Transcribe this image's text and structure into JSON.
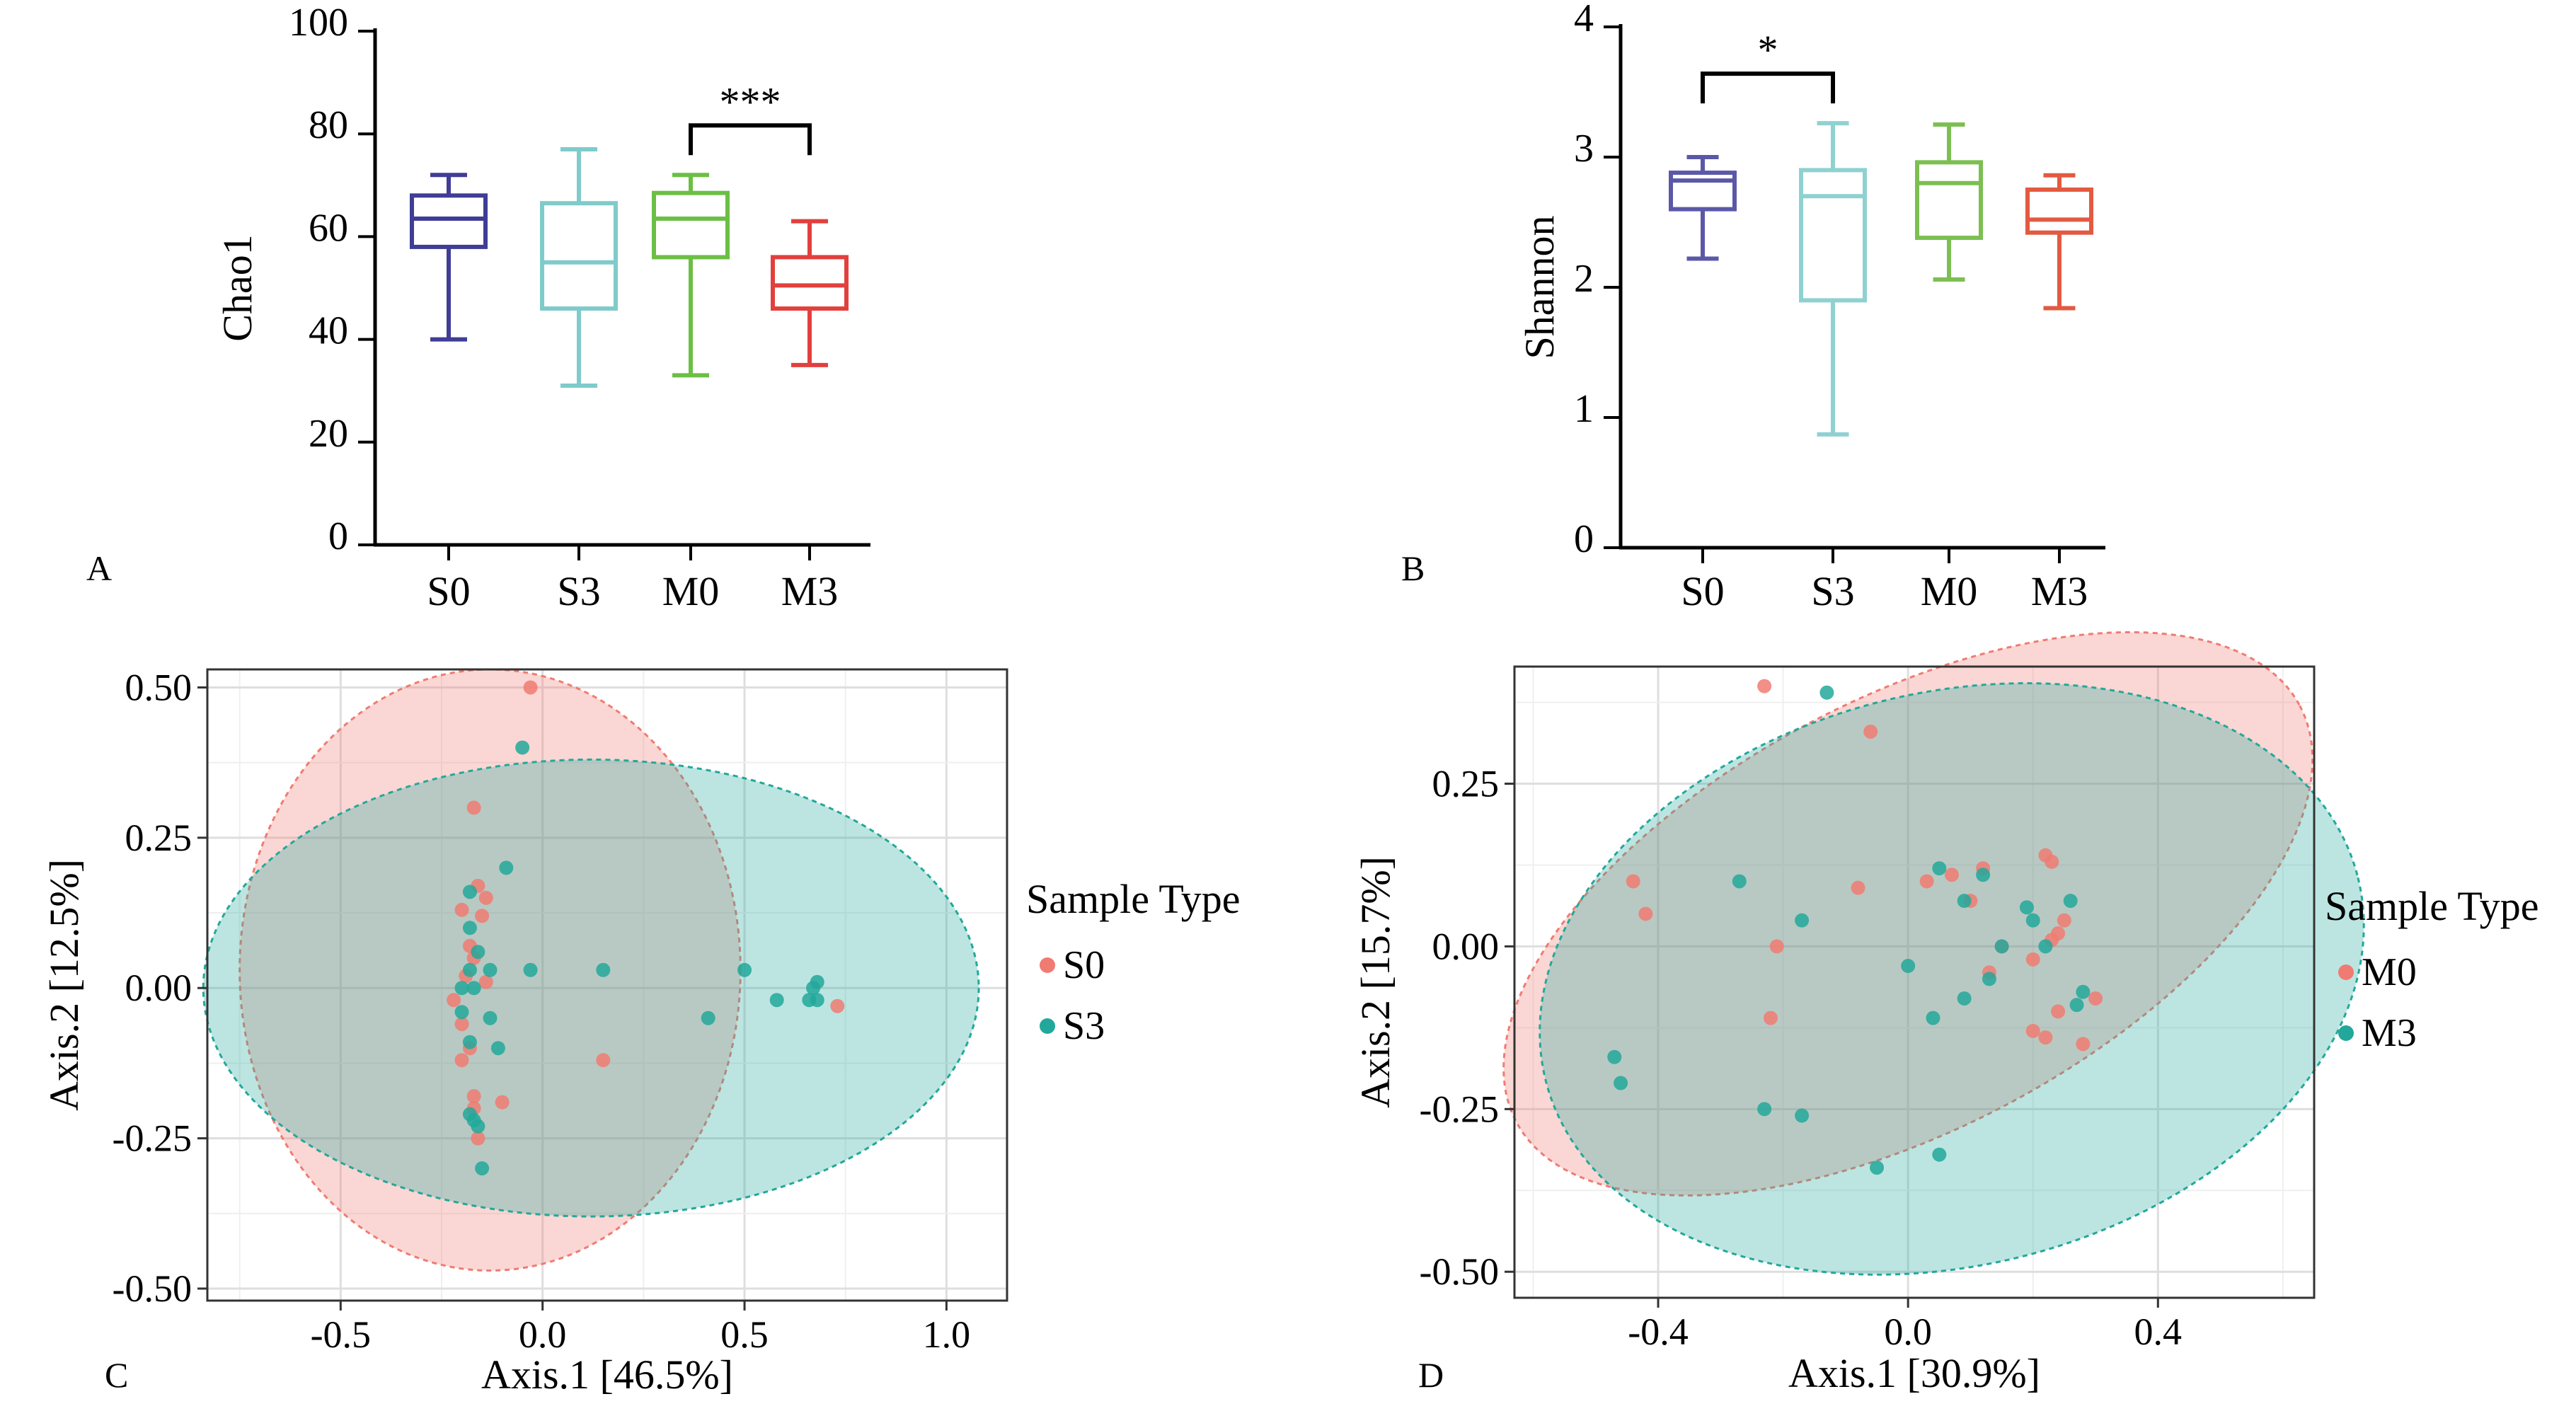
{
  "panels": {
    "A": {
      "label": "A"
    },
    "B": {
      "label": "B"
    },
    "C": {
      "label": "C"
    },
    "D": {
      "label": "D"
    }
  },
  "chart_data": [
    {
      "id": "A",
      "type": "box",
      "ylabel": "Chao1",
      "ylim": [
        0,
        100
      ],
      "yticks": [
        0,
        20,
        40,
        60,
        80,
        100
      ],
      "categories": [
        "S0",
        "S3",
        "M0",
        "M3"
      ],
      "colors": [
        "#3f3d96",
        "#7fcbcb",
        "#6cbf45",
        "#e2403d"
      ],
      "boxes": [
        {
          "min": 40,
          "q1": 58,
          "median": 63.5,
          "q3": 68,
          "max": 72
        },
        {
          "min": 31,
          "q1": 46,
          "median": 55,
          "q3": 66.5,
          "max": 77
        },
        {
          "min": 33,
          "q1": 56,
          "median": 63.5,
          "q3": 68.5,
          "max": 72
        },
        {
          "min": 35,
          "q1": 46,
          "median": 50.5,
          "q3": 56,
          "max": 63
        }
      ],
      "significance": [
        {
          "from": "M0",
          "to": "M3",
          "label": "***"
        }
      ]
    },
    {
      "id": "B",
      "type": "box",
      "ylabel": "Shannon",
      "ylim": [
        0,
        4
      ],
      "yticks": [
        0,
        1,
        2,
        3,
        4
      ],
      "categories": [
        "S0",
        "S3",
        "M0",
        "M3"
      ],
      "colors": [
        "#5b58a8",
        "#8fd1d1",
        "#7cbf52",
        "#e25a40"
      ],
      "boxes": [
        {
          "min": 2.22,
          "q1": 2.6,
          "median": 2.82,
          "q3": 2.88,
          "max": 3.0
        },
        {
          "min": 0.87,
          "q1": 1.9,
          "median": 2.7,
          "q3": 2.9,
          "max": 3.26
        },
        {
          "min": 2.06,
          "q1": 2.38,
          "median": 2.8,
          "q3": 2.96,
          "max": 3.25
        },
        {
          "min": 1.84,
          "q1": 2.42,
          "median": 2.52,
          "q3": 2.75,
          "max": 2.86
        }
      ],
      "significance": [
        {
          "from": "S0",
          "to": "S3",
          "label": "*"
        }
      ]
    },
    {
      "id": "C",
      "type": "scatter",
      "xlabel": "Axis.1 [46.5%]",
      "ylabel": "Axis.2 [12.5%]",
      "xlim": [
        -0.83,
        1.15
      ],
      "ylim": [
        -0.52,
        0.53
      ],
      "xticks": [
        -0.5,
        0.0,
        0.5,
        1.0
      ],
      "xticklabels": [
        "-0.5",
        "0.0",
        "0.5",
        "1.0"
      ],
      "yticks": [
        -0.5,
        -0.25,
        0.0,
        0.25,
        0.5
      ],
      "yticklabels": [
        "-0.50",
        "-0.25",
        "0.00",
        "0.25",
        "0.50"
      ],
      "grid": true,
      "legend_title": "Sample Type",
      "legend_position": "right",
      "series": [
        {
          "name": "S0",
          "color": "#f07b72",
          "ellipse": {
            "cx": -0.13,
            "cy": 0.03,
            "rx": 0.62,
            "ry": 0.5,
            "angle": 0
          },
          "points": [
            [
              -0.03,
              0.5
            ],
            [
              -0.17,
              0.3
            ],
            [
              -0.16,
              0.17
            ],
            [
              -0.14,
              0.15
            ],
            [
              -0.2,
              0.13
            ],
            [
              -0.15,
              0.12
            ],
            [
              -0.18,
              0.07
            ],
            [
              -0.17,
              0.05
            ],
            [
              -0.19,
              0.02
            ],
            [
              -0.14,
              0.01
            ],
            [
              -0.22,
              -0.02
            ],
            [
              -0.2,
              -0.06
            ],
            [
              -0.18,
              -0.1
            ],
            [
              -0.2,
              -0.12
            ],
            [
              -0.17,
              -0.18
            ],
            [
              -0.17,
              -0.2
            ],
            [
              -0.1,
              -0.19
            ],
            [
              -0.16,
              -0.25
            ],
            [
              0.15,
              -0.12
            ],
            [
              0.73,
              -0.03
            ]
          ]
        },
        {
          "name": "S3",
          "color": "#22a89a",
          "ellipse": {
            "cx": 0.12,
            "cy": 0.0,
            "rx": 0.96,
            "ry": 0.38,
            "angle": 0
          },
          "points": [
            [
              -0.05,
              0.4
            ],
            [
              -0.09,
              0.2
            ],
            [
              -0.18,
              0.16
            ],
            [
              -0.18,
              0.1
            ],
            [
              -0.16,
              0.06
            ],
            [
              -0.18,
              0.03
            ],
            [
              -0.13,
              0.03
            ],
            [
              -0.03,
              0.03
            ],
            [
              -0.2,
              0.0
            ],
            [
              -0.17,
              0.0
            ],
            [
              -0.13,
              -0.05
            ],
            [
              -0.2,
              -0.04
            ],
            [
              -0.18,
              -0.09
            ],
            [
              -0.11,
              -0.1
            ],
            [
              -0.18,
              -0.21
            ],
            [
              -0.16,
              -0.23
            ],
            [
              -0.17,
              -0.22
            ],
            [
              -0.15,
              -0.3
            ],
            [
              0.15,
              0.03
            ],
            [
              0.41,
              -0.05
            ],
            [
              0.5,
              0.03
            ],
            [
              0.58,
              -0.02
            ],
            [
              0.66,
              -0.02
            ],
            [
              0.68,
              -0.02
            ],
            [
              0.68,
              0.01
            ],
            [
              0.67,
              0.0
            ]
          ]
        }
      ]
    },
    {
      "id": "D",
      "type": "scatter",
      "xlabel": "Axis.1 [30.9%]",
      "ylabel": "Axis.2 [15.7%]",
      "xlim": [
        -0.63,
        0.65
      ],
      "ylim": [
        -0.54,
        0.43
      ],
      "xticks": [
        -0.4,
        0.0,
        0.4
      ],
      "xticklabels": [
        "-0.4",
        "0.0",
        "0.4"
      ],
      "yticks": [
        -0.5,
        -0.25,
        0.0,
        0.25
      ],
      "yticklabels": [
        "-0.50",
        "-0.25",
        "0.00",
        "0.25"
      ],
      "grid": true,
      "legend_title": "Sample Type",
      "legend_position": "right",
      "series": [
        {
          "name": "M0",
          "color": "#f07b72",
          "ellipse": {
            "cx": 0.0,
            "cy": 0.05,
            "rx": 0.71,
            "ry": 0.33,
            "angle": -28
          },
          "points": [
            [
              -0.23,
              0.4
            ],
            [
              -0.06,
              0.33
            ],
            [
              -0.44,
              0.1
            ],
            [
              -0.42,
              0.05
            ],
            [
              -0.21,
              0.0
            ],
            [
              -0.08,
              0.09
            ],
            [
              0.03,
              0.1
            ],
            [
              0.1,
              0.07
            ],
            [
              0.07,
              0.11
            ],
            [
              0.12,
              0.12
            ],
            [
              0.22,
              0.14
            ],
            [
              0.23,
              0.13
            ],
            [
              0.25,
              0.04
            ],
            [
              0.24,
              0.02
            ],
            [
              0.23,
              0.01
            ],
            [
              0.15,
              0.0
            ],
            [
              0.2,
              -0.02
            ],
            [
              0.13,
              -0.04
            ],
            [
              0.3,
              -0.08
            ],
            [
              0.24,
              -0.1
            ],
            [
              0.2,
              -0.13
            ],
            [
              0.22,
              -0.14
            ],
            [
              0.28,
              -0.15
            ],
            [
              -0.22,
              -0.11
            ]
          ]
        },
        {
          "name": "M3",
          "color": "#22a89a",
          "ellipse": {
            "cx": 0.07,
            "cy": -0.05,
            "rx": 0.67,
            "ry": 0.44,
            "angle": -14
          },
          "points": [
            [
              -0.13,
              0.39
            ],
            [
              -0.27,
              0.1
            ],
            [
              -0.17,
              0.04
            ],
            [
              0.05,
              0.12
            ],
            [
              0.09,
              0.07
            ],
            [
              0.12,
              0.11
            ],
            [
              0.19,
              0.06
            ],
            [
              0.26,
              0.07
            ],
            [
              0.2,
              0.04
            ],
            [
              0.15,
              0.0
            ],
            [
              0.22,
              0.0
            ],
            [
              0.0,
              -0.03
            ],
            [
              0.13,
              -0.05
            ],
            [
              0.09,
              -0.08
            ],
            [
              0.04,
              -0.11
            ],
            [
              0.28,
              -0.07
            ],
            [
              0.27,
              -0.09
            ],
            [
              -0.47,
              -0.17
            ],
            [
              -0.46,
              -0.21
            ],
            [
              -0.23,
              -0.25
            ],
            [
              -0.17,
              -0.26
            ],
            [
              -0.05,
              -0.34
            ],
            [
              0.05,
              -0.32
            ]
          ]
        }
      ]
    }
  ]
}
